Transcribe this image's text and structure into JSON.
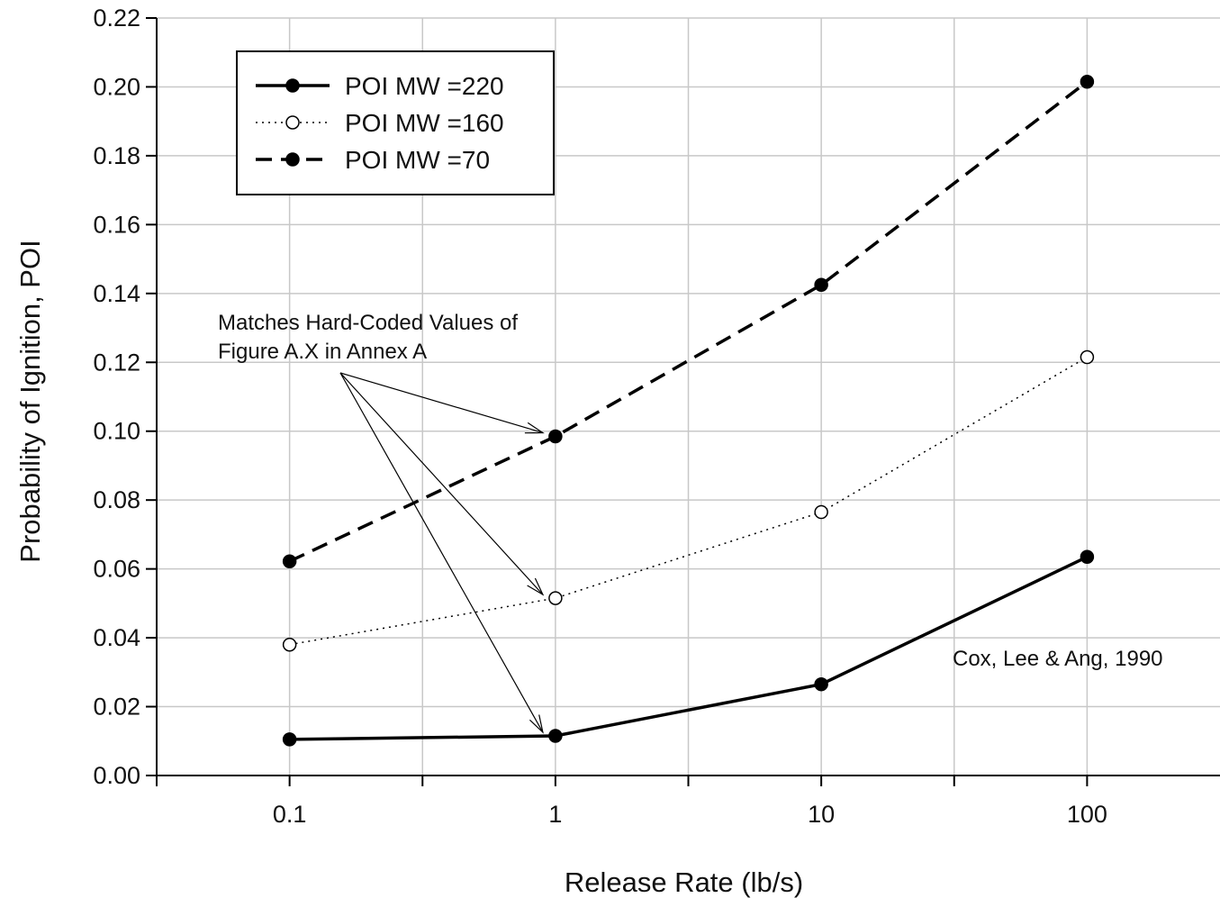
{
  "chart_data": {
    "type": "line",
    "xlabel": "Release Rate (lb/s)",
    "ylabel": "Probability of Ignition, POI",
    "x_scale": "log",
    "xlim": [
      0.03162,
      316.2
    ],
    "ylim": [
      0,
      0.22
    ],
    "x_ticks": [
      0.1,
      1,
      10,
      100
    ],
    "x_tick_labels": [
      "0.1",
      "1",
      "10",
      "100"
    ],
    "y_ticks": [
      0,
      0.02,
      0.04,
      0.06,
      0.08,
      0.1,
      0.12,
      0.14,
      0.16,
      0.18,
      0.2,
      0.22
    ],
    "y_tick_labels": [
      "0.00",
      "0.02",
      "0.04",
      "0.06",
      "0.08",
      "0.10",
      "0.12",
      "0.14",
      "0.16",
      "0.18",
      "0.20",
      "0.22"
    ],
    "grid": true,
    "legend_position": "top-left",
    "x": [
      0.1,
      1,
      10,
      100
    ],
    "series": [
      {
        "name": "POI MW =220",
        "values": [
          0.0105,
          0.0115,
          0.0265,
          0.0635
        ],
        "line": "solid",
        "marker": "filled-circle"
      },
      {
        "name": "POI MW =160",
        "values": [
          0.038,
          0.0515,
          0.0765,
          0.1215
        ],
        "line": "dotted",
        "marker": "open-circle"
      },
      {
        "name": "POI MW =70",
        "values": [
          0.0622,
          0.0985,
          0.1425,
          0.2015
        ],
        "line": "dashed",
        "marker": "filled-circle"
      }
    ],
    "annotations": [
      {
        "text_lines": [
          "Matches Hard-Coded Values of",
          "Figure A.X in Annex A"
        ],
        "arrow_targets": [
          {
            "x": 1,
            "y": 0.0985
          },
          {
            "x": 1,
            "y": 0.0515
          },
          {
            "x": 1,
            "y": 0.0115
          }
        ]
      },
      {
        "text_lines": [
          "Cox, Lee & Ang, 1990"
        ]
      }
    ]
  },
  "colors": {
    "line": "#000000",
    "grid": "#c8c8c8",
    "background": "#ffffff"
  }
}
